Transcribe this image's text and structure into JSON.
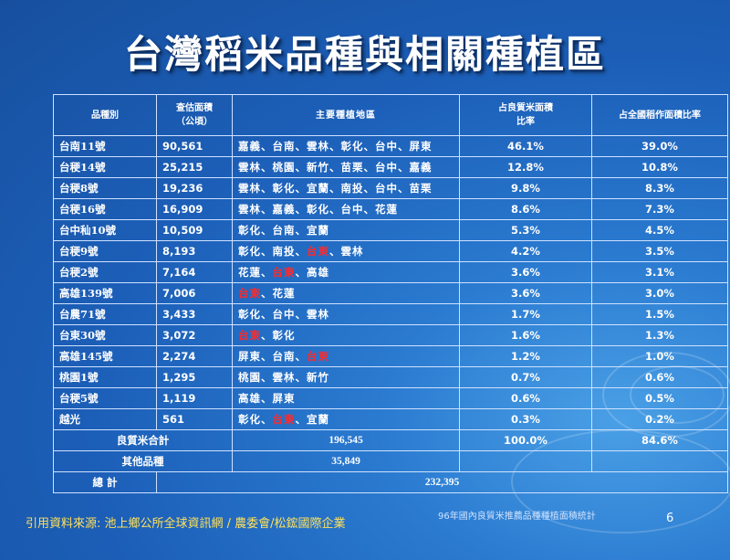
{
  "title": "台灣稻米品種與相關種植區",
  "table": {
    "headers": [
      "品種別",
      "查估面積\n（公頃）",
      "主要種植地區",
      "占良質米面積\n比率",
      "占全國稻作面積比率"
    ],
    "rows": [
      {
        "name": "台南11號",
        "area": "90,561",
        "regions": [
          "嘉義",
          "台南",
          "雲林",
          "彰化",
          "台中",
          "屏東"
        ],
        "pct_quality": "46.1%",
        "pct_national": "39.0%"
      },
      {
        "name": "台稉14號",
        "area": "25,215",
        "regions": [
          "雲林",
          "桃園",
          "新竹",
          "苗栗",
          "台中",
          "嘉義"
        ],
        "pct_quality": "12.8%",
        "pct_national": "10.8%"
      },
      {
        "name": "台稉8號",
        "area": "19,236",
        "regions": [
          "雲林",
          "彰化",
          "宜蘭",
          "南投",
          "台中",
          "苗栗"
        ],
        "pct_quality": "9.8%",
        "pct_national": "8.3%"
      },
      {
        "name": "台稉16號",
        "area": "16,909",
        "regions": [
          "雲林",
          "嘉義",
          "彰化",
          "台中",
          "花蓮"
        ],
        "pct_quality": "8.6%",
        "pct_national": "7.3%"
      },
      {
        "name": "台中秈10號",
        "area": "10,509",
        "regions": [
          "彰化",
          "台南",
          "宜蘭"
        ],
        "pct_quality": "5.3%",
        "pct_national": "4.5%"
      },
      {
        "name": "台稉9號",
        "area": "8,193",
        "regions": [
          "彰化",
          "南投",
          "台東",
          "雲林"
        ],
        "pct_quality": "4.2%",
        "pct_national": "3.5%"
      },
      {
        "name": "台稉2號",
        "area": "7,164",
        "regions": [
          "花蓮",
          "台東",
          "高雄"
        ],
        "pct_quality": "3.6%",
        "pct_national": "3.1%"
      },
      {
        "name": "高雄139號",
        "area": "7,006",
        "regions": [
          "台東",
          "花蓮"
        ],
        "pct_quality": "3.6%",
        "pct_national": "3.0%"
      },
      {
        "name": "台農71號",
        "area": "3,433",
        "regions": [
          "彰化",
          "台中",
          "雲林"
        ],
        "pct_quality": "1.7%",
        "pct_national": "1.5%"
      },
      {
        "name": "台東30號",
        "area": "3,072",
        "regions": [
          "台東",
          "彰化"
        ],
        "pct_quality": "1.6%",
        "pct_national": "1.3%"
      },
      {
        "name": "高雄145號",
        "area": "2,274",
        "regions": [
          "屏東",
          "台南",
          "台東"
        ],
        "pct_quality": "1.2%",
        "pct_national": "1.0%"
      },
      {
        "name": "桃園1號",
        "area": "1,295",
        "regions": [
          "桃園",
          "雲林",
          "新竹"
        ],
        "pct_quality": "0.7%",
        "pct_national": "0.6%"
      },
      {
        "name": "台稉5號",
        "area": "1,119",
        "regions": [
          "高雄",
          "屏東"
        ],
        "pct_quality": "0.6%",
        "pct_national": "0.5%"
      },
      {
        "name": "越光",
        "area": "561",
        "regions": [
          "彰化",
          "台東",
          "宜蘭"
        ],
        "pct_quality": "0.3%",
        "pct_national": "0.2%"
      }
    ],
    "highlight_region": "台東",
    "highlight_color": "#ff2a2a",
    "summary": {
      "quality_label": "良質米合計",
      "quality_area": "196,545",
      "quality_pct": "100.0%",
      "quality_national": "84.6%",
      "other_label": "其他品種",
      "other_area": "35,849",
      "total_label": "總 計",
      "total_area": "232,395"
    }
  },
  "footer": {
    "source": "引用資料來源: 池上鄉公所全球資訊網 / 農委會/松鋐國際企業",
    "note": "96年國內良質米推薦品種種植面積統計",
    "page": "6"
  }
}
